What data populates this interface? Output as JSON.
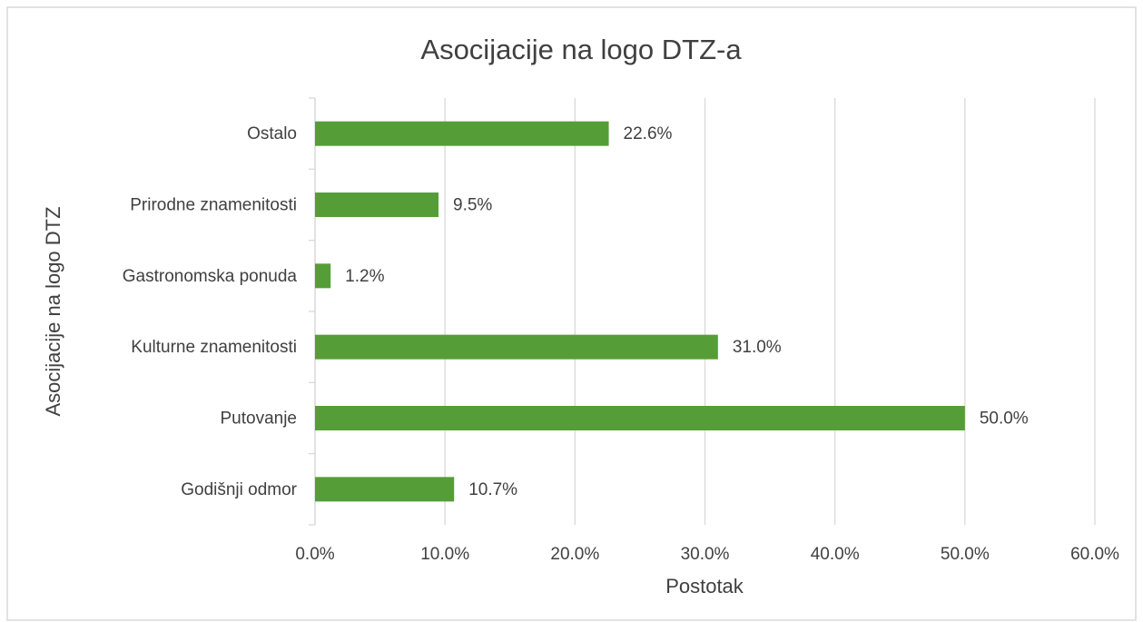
{
  "chart_data": {
    "type": "bar",
    "orientation": "horizontal",
    "title": "Asocijacije na logo DTZ-a",
    "x_label": "Postotak",
    "y_label": "Asocijacije na logo DTZ",
    "categories": [
      "Ostalo",
      "Prirodne znamenitosti",
      "Gastronomska ponuda",
      "Kulturne znamenitosti",
      "Putovanje",
      "Godišnji odmor"
    ],
    "values": [
      22.6,
      9.5,
      1.2,
      31.0,
      50.0,
      10.7
    ],
    "value_labels": [
      "22.6%",
      "9.5%",
      "1.2%",
      "31.0%",
      "50.0%",
      "10.7%"
    ],
    "color": "#559e37",
    "xlim": [
      0,
      60
    ],
    "xticks": [
      {
        "value": 0,
        "label": "0.0%"
      },
      {
        "value": 10,
        "label": "10.0%"
      },
      {
        "value": 20,
        "label": "20.0%"
      },
      {
        "value": 30,
        "label": "30.0%"
      },
      {
        "value": 40,
        "label": "40.0%"
      },
      {
        "value": 50,
        "label": "50.0%"
      },
      {
        "value": 60,
        "label": "60.0%"
      }
    ],
    "grid": true
  }
}
